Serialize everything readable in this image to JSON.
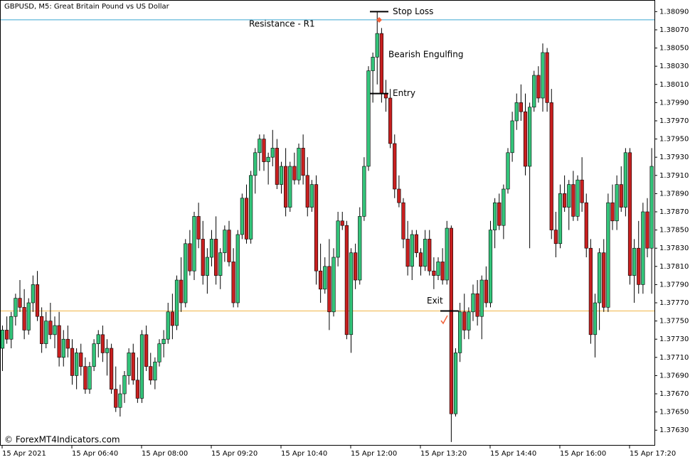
{
  "chart_data": {
    "type": "candlestick",
    "title": "GBPUSD, M5:  Great Britain Pound vs US Dollar",
    "credit": "© ForexMT4Indicators.com",
    "up_color": "#33c47a",
    "down_color": "#c81f1f",
    "ylim": [
      1.37613,
      1.38102
    ],
    "yticks": [
      {
        "value": 1.3809,
        "label": "1.38090"
      },
      {
        "value": 1.3807,
        "label": "1.38070"
      },
      {
        "value": 1.3805,
        "label": "1.38050"
      },
      {
        "value": 1.3803,
        "label": "1.38030"
      },
      {
        "value": 1.3801,
        "label": "1.38010"
      },
      {
        "value": 1.3799,
        "label": "1.37990"
      },
      {
        "value": 1.3797,
        "label": "1.37970"
      },
      {
        "value": 1.3795,
        "label": "1.37950"
      },
      {
        "value": 1.3793,
        "label": "1.37930"
      },
      {
        "value": 1.3791,
        "label": "1.37910"
      },
      {
        "value": 1.3789,
        "label": "1.37890"
      },
      {
        "value": 1.3787,
        "label": "1.37870"
      },
      {
        "value": 1.3785,
        "label": "1.37850"
      },
      {
        "value": 1.3783,
        "label": "1.37830"
      },
      {
        "value": 1.3781,
        "label": "1.37810"
      },
      {
        "value": 1.3779,
        "label": "1.37790"
      },
      {
        "value": 1.3777,
        "label": "1.37770"
      },
      {
        "value": 1.3775,
        "label": "1.37750"
      },
      {
        "value": 1.3773,
        "label": "1.37730"
      },
      {
        "value": 1.3771,
        "label": "1.37710"
      },
      {
        "value": 1.3769,
        "label": "1.37690"
      },
      {
        "value": 1.3767,
        "label": "1.37670"
      },
      {
        "value": 1.3765,
        "label": "1.37650"
      },
      {
        "value": 1.3763,
        "label": "1.37630"
      }
    ],
    "categories": [
      "15 Apr 2021",
      null,
      null,
      null,
      null,
      null,
      null,
      null,
      null,
      null,
      null,
      null,
      null,
      null,
      null,
      null,
      "15 Apr 06:40",
      null,
      null,
      null,
      null,
      null,
      null,
      null,
      null,
      null,
      null,
      null,
      null,
      null,
      null,
      null,
      "15 Apr 08:00",
      null,
      null,
      null,
      null,
      null,
      null,
      null,
      null,
      null,
      null,
      null,
      null,
      null,
      null,
      null,
      "15 Apr 09:20",
      null,
      null,
      null,
      null,
      null,
      null,
      null,
      null,
      null,
      null,
      null,
      null,
      null,
      null,
      null,
      "15 Apr 10:40",
      null,
      null,
      null,
      null,
      null,
      null,
      null,
      null,
      null,
      null,
      null,
      null,
      null,
      null,
      null,
      "15 Apr 12:00",
      null,
      null,
      null,
      null,
      null,
      null,
      null,
      null,
      null,
      null,
      null,
      null,
      null,
      null,
      null,
      "15 Apr 13:20",
      null,
      null,
      null,
      null,
      null,
      null,
      null,
      null,
      null,
      null,
      null,
      null,
      null,
      null,
      null,
      "15 Apr 14:40",
      null,
      null,
      null,
      null,
      null,
      null,
      null,
      null,
      null,
      null,
      null,
      null,
      null,
      null,
      null,
      "15 Apr 16:00",
      null,
      null,
      null,
      null,
      null,
      null,
      null,
      null,
      null,
      null,
      null,
      null,
      null,
      null,
      null,
      "15 Apr 17:20",
      null,
      null,
      null,
      null,
      null
    ],
    "ohlc": [
      [
        1.3772,
        1.37745,
        1.37695,
        1.3774
      ],
      [
        1.3774,
        1.37755,
        1.37725,
        1.3773
      ],
      [
        1.3773,
        1.3776,
        1.3772,
        1.37755
      ],
      [
        1.37755,
        1.3778,
        1.37745,
        1.37775
      ],
      [
        1.37775,
        1.37795,
        1.3776,
        1.37765
      ],
      [
        1.37765,
        1.37785,
        1.3773,
        1.3774
      ],
      [
        1.3774,
        1.37775,
        1.37735,
        1.3777
      ],
      [
        1.3777,
        1.378,
        1.3776,
        1.3779
      ],
      [
        1.3779,
        1.37805,
        1.3775,
        1.37755
      ],
      [
        1.37755,
        1.37765,
        1.37715,
        1.37725
      ],
      [
        1.37725,
        1.3776,
        1.3772,
        1.3775
      ],
      [
        1.3775,
        1.3777,
        1.3773,
        1.37735
      ],
      [
        1.37735,
        1.37755,
        1.3772,
        1.37745
      ],
      [
        1.37745,
        1.3776,
        1.377,
        1.3771
      ],
      [
        1.3771,
        1.3774,
        1.377,
        1.3773
      ],
      [
        1.3773,
        1.37745,
        1.3771,
        1.3772
      ],
      [
        1.3772,
        1.3773,
        1.3768,
        1.3769
      ],
      [
        1.3769,
        1.3772,
        1.37675,
        1.37715
      ],
      [
        1.37715,
        1.37725,
        1.3769,
        1.377
      ],
      [
        1.377,
        1.3771,
        1.3767,
        1.37675
      ],
      [
        1.37675,
        1.37705,
        1.3767,
        1.377
      ],
      [
        1.377,
        1.3773,
        1.37695,
        1.37725
      ],
      [
        1.37725,
        1.3774,
        1.3771,
        1.37735
      ],
      [
        1.37735,
        1.37745,
        1.37705,
        1.37715
      ],
      [
        1.37715,
        1.3773,
        1.3769,
        1.3772
      ],
      [
        1.3772,
        1.37725,
        1.3767,
        1.37675
      ],
      [
        1.37675,
        1.377,
        1.3765,
        1.37655
      ],
      [
        1.37655,
        1.3768,
        1.37645,
        1.3767
      ],
      [
        1.3767,
        1.37695,
        1.3766,
        1.3769
      ],
      [
        1.3769,
        1.3772,
        1.3768,
        1.37715
      ],
      [
        1.37715,
        1.37725,
        1.3768,
        1.37685
      ],
      [
        1.37685,
        1.3771,
        1.3766,
        1.37665
      ],
      [
        1.37665,
        1.3774,
        1.3766,
        1.37735
      ],
      [
        1.37735,
        1.37745,
        1.37695,
        1.377
      ],
      [
        1.377,
        1.37715,
        1.3768,
        1.37685
      ],
      [
        1.37685,
        1.3771,
        1.37675,
        1.37705
      ],
      [
        1.37705,
        1.3773,
        1.377,
        1.37725
      ],
      [
        1.37725,
        1.3774,
        1.3771,
        1.3773
      ],
      [
        1.3773,
        1.3777,
        1.37725,
        1.3776
      ],
      [
        1.3776,
        1.3778,
        1.3773,
        1.37745
      ],
      [
        1.37745,
        1.378,
        1.3774,
        1.37795
      ],
      [
        1.37795,
        1.3782,
        1.3776,
        1.3777
      ],
      [
        1.3777,
        1.3784,
        1.37765,
        1.37835
      ],
      [
        1.37835,
        1.3785,
        1.378,
        1.37805
      ],
      [
        1.37805,
        1.3787,
        1.37795,
        1.37865
      ],
      [
        1.37865,
        1.3788,
        1.3783,
        1.3784
      ],
      [
        1.3784,
        1.3786,
        1.3779,
        1.378
      ],
      [
        1.378,
        1.3783,
        1.3778,
        1.3782
      ],
      [
        1.3782,
        1.3785,
        1.3781,
        1.3784
      ],
      [
        1.3784,
        1.37865,
        1.3779,
        1.378
      ],
      [
        1.378,
        1.3783,
        1.37785,
        1.37825
      ],
      [
        1.37825,
        1.37855,
        1.37815,
        1.3785
      ],
      [
        1.3785,
        1.3786,
        1.3781,
        1.37815
      ],
      [
        1.37815,
        1.3783,
        1.37765,
        1.3777
      ],
      [
        1.3777,
        1.3785,
        1.37765,
        1.37845
      ],
      [
        1.37845,
        1.3789,
        1.3784,
        1.37885
      ],
      [
        1.37885,
        1.379,
        1.37835,
        1.3784
      ],
      [
        1.3784,
        1.37915,
        1.37835,
        1.3791
      ],
      [
        1.3791,
        1.3794,
        1.3789,
        1.37935
      ],
      [
        1.37935,
        1.37955,
        1.37915,
        1.3795
      ],
      [
        1.3795,
        1.37955,
        1.37915,
        1.37925
      ],
      [
        1.37925,
        1.37935,
        1.379,
        1.3793
      ],
      [
        1.3793,
        1.3796,
        1.3792,
        1.3794
      ],
      [
        1.3794,
        1.3795,
        1.37895,
        1.379
      ],
      [
        1.379,
        1.37925,
        1.3789,
        1.3792
      ],
      [
        1.3792,
        1.3794,
        1.37865,
        1.37875
      ],
      [
        1.37875,
        1.37925,
        1.3787,
        1.3792
      ],
      [
        1.3792,
        1.37935,
        1.379,
        1.37905
      ],
      [
        1.37905,
        1.37945,
        1.379,
        1.3794
      ],
      [
        1.3794,
        1.37955,
        1.379,
        1.3791
      ],
      [
        1.3791,
        1.3793,
        1.37865,
        1.37875
      ],
      [
        1.37875,
        1.37905,
        1.3787,
        1.379
      ],
      [
        1.379,
        1.3791,
        1.3779,
        1.37805
      ],
      [
        1.37805,
        1.37835,
        1.3777,
        1.37785
      ],
      [
        1.37785,
        1.3782,
        1.3778,
        1.3781
      ],
      [
        1.3781,
        1.3784,
        1.3774,
        1.3776
      ],
      [
        1.3776,
        1.3783,
        1.37755,
        1.3782
      ],
      [
        1.3782,
        1.3787,
        1.3781,
        1.3786
      ],
      [
        1.3786,
        1.3787,
        1.3785,
        1.37855
      ],
      [
        1.37855,
        1.3786,
        1.3773,
        1.37735
      ],
      [
        1.37735,
        1.3783,
        1.37715,
        1.37825
      ],
      [
        1.37825,
        1.37835,
        1.37785,
        1.37795
      ],
      [
        1.37795,
        1.37875,
        1.3779,
        1.37865
      ],
      [
        1.37865,
        1.3793,
        1.3786,
        1.3792
      ],
      [
        1.3792,
        1.3803,
        1.37915,
        1.38025
      ],
      [
        1.38025,
        1.38045,
        1.3799,
        1.3804
      ],
      [
        1.3804,
        1.3809,
        1.3801,
        1.38066
      ],
      [
        1.38066,
        1.38072,
        1.3799,
        1.38
      ],
      [
        1.38,
        1.38015,
        1.3798,
        1.37995
      ],
      [
        1.37995,
        1.38005,
        1.3794,
        1.37945
      ],
      [
        1.37945,
        1.37955,
        1.37885,
        1.37895
      ],
      [
        1.37895,
        1.3791,
        1.37875,
        1.3788
      ],
      [
        1.3788,
        1.37885,
        1.3783,
        1.3784
      ],
      [
        1.3784,
        1.3786,
        1.378,
        1.3781
      ],
      [
        1.3781,
        1.3785,
        1.37795,
        1.37845
      ],
      [
        1.37845,
        1.3785,
        1.3782,
        1.37825
      ],
      [
        1.37825,
        1.3783,
        1.378,
        1.3781
      ],
      [
        1.3781,
        1.3785,
        1.37805,
        1.3784
      ],
      [
        1.3784,
        1.3785,
        1.378,
        1.37805
      ],
      [
        1.37805,
        1.3782,
        1.37785,
        1.378
      ],
      [
        1.378,
        1.3782,
        1.37795,
        1.37815
      ],
      [
        1.37815,
        1.3783,
        1.3779,
        1.37795
      ],
      [
        1.37795,
        1.3786,
        1.3779,
        1.37852
      ],
      [
        1.37852,
        1.37855,
        1.37617,
        1.37648
      ],
      [
        1.37648,
        1.3772,
        1.37645,
        1.37715
      ],
      [
        1.37715,
        1.3777,
        1.37705,
        1.3776
      ],
      [
        1.3776,
        1.3778,
        1.3773,
        1.3774
      ],
      [
        1.3774,
        1.37765,
        1.3773,
        1.3776
      ],
      [
        1.3776,
        1.3779,
        1.3775,
        1.3778
      ],
      [
        1.3778,
        1.37795,
        1.37745,
        1.37755
      ],
      [
        1.37755,
        1.378,
        1.3773,
        1.37795
      ],
      [
        1.37795,
        1.3781,
        1.37765,
        1.3777
      ],
      [
        1.3777,
        1.3786,
        1.37765,
        1.3785
      ],
      [
        1.3785,
        1.37885,
        1.3783,
        1.3788
      ],
      [
        1.3788,
        1.3789,
        1.3785,
        1.37855
      ],
      [
        1.37855,
        1.379,
        1.3784,
        1.37895
      ],
      [
        1.37895,
        1.3794,
        1.3789,
        1.37935
      ],
      [
        1.37935,
        1.3798,
        1.37925,
        1.3797
      ],
      [
        1.3797,
        1.38,
        1.3796,
        1.3799
      ],
      [
        1.3799,
        1.3801,
        1.3797,
        1.3798
      ],
      [
        1.3798,
        1.38,
        1.3791,
        1.3792
      ],
      [
        1.3792,
        1.3799,
        1.3783,
        1.37985
      ],
      [
        1.37985,
        1.38025,
        1.3798,
        1.3802
      ],
      [
        1.3802,
        1.3803,
        1.3799,
        1.37995
      ],
      [
        1.37995,
        1.38055,
        1.3798,
        1.38045
      ],
      [
        1.38045,
        1.3805,
        1.3798,
        1.3799
      ],
      [
        1.3799,
        1.38005,
        1.3784,
        1.3785
      ],
      [
        1.3785,
        1.3787,
        1.3782,
        1.37835
      ],
      [
        1.37835,
        1.379,
        1.3783,
        1.3789
      ],
      [
        1.3789,
        1.3791,
        1.3787,
        1.37875
      ],
      [
        1.37875,
        1.37905,
        1.3785,
        1.379
      ],
      [
        1.379,
        1.37915,
        1.3786,
        1.37865
      ],
      [
        1.37865,
        1.3791,
        1.3786,
        1.37905
      ],
      [
        1.37905,
        1.3793,
        1.3787,
        1.3788
      ],
      [
        1.3788,
        1.3789,
        1.3782,
        1.3783
      ],
      [
        1.3783,
        1.3784,
        1.37725,
        1.37735
      ],
      [
        1.37735,
        1.3778,
        1.3771,
        1.3777
      ],
      [
        1.3777,
        1.3783,
        1.3774,
        1.37825
      ],
      [
        1.37825,
        1.3784,
        1.3776,
        1.37765
      ],
      [
        1.37765,
        1.3789,
        1.3776,
        1.3788
      ],
      [
        1.3788,
        1.379,
        1.3785,
        1.3786
      ],
      [
        1.3786,
        1.3791,
        1.3785,
        1.379
      ],
      [
        1.379,
        1.3792,
        1.3787,
        1.37875
      ],
      [
        1.37875,
        1.3794,
        1.37865,
        1.37935
      ],
      [
        1.37935,
        1.3794,
        1.3779,
        1.378
      ],
      [
        1.378,
        1.3784,
        1.3777,
        1.3783
      ],
      [
        1.3783,
        1.3786,
        1.3778,
        1.3779
      ],
      [
        1.3779,
        1.3788,
        1.3778,
        1.3787
      ],
      [
        1.3787,
        1.37885,
        1.3782,
        1.3783
      ],
      [
        1.3783,
        1.3794,
        1.3778,
        1.3792
      ]
    ],
    "hlines": [
      {
        "value": 1.38081,
        "color": "#3aa6d0"
      },
      {
        "value": 1.37761,
        "color": "#f2b64a"
      }
    ],
    "resistance_label": "Resistance - R1",
    "pattern_label": "Bearish Engulfing",
    "levels": [
      {
        "label": "Stop Loss",
        "value": 1.3809
      },
      {
        "label": "Entry",
        "value": 1.38
      },
      {
        "label": "Exit",
        "value": 1.37761
      }
    ]
  }
}
